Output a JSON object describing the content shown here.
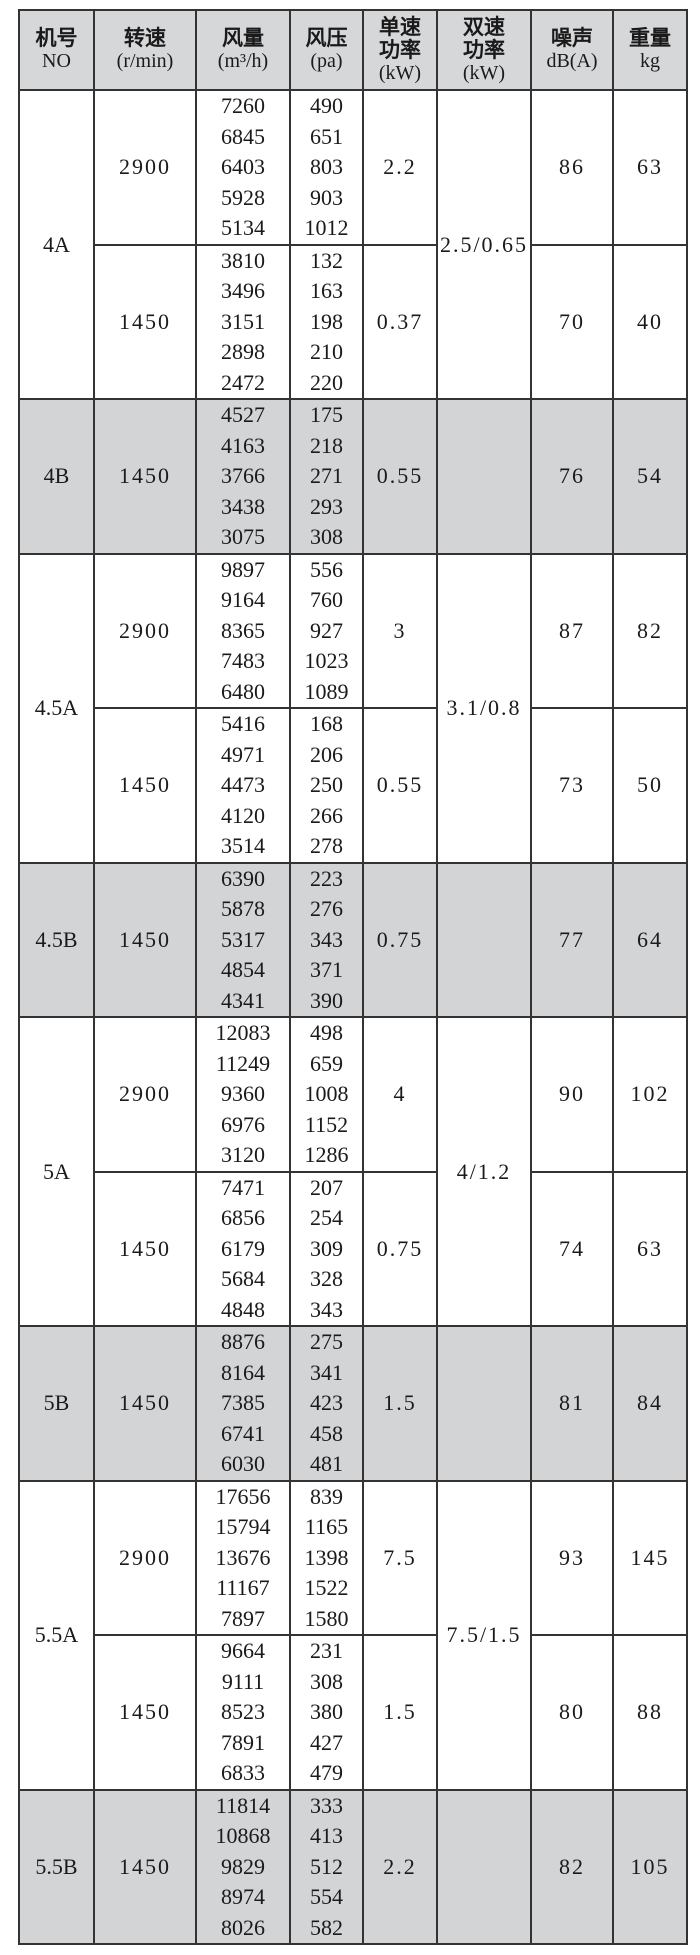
{
  "headers": [
    {
      "title": "机号",
      "sub": "NO"
    },
    {
      "title": "转速",
      "sub": "(r/min)"
    },
    {
      "title": "风量",
      "sub": "(m³/h)"
    },
    {
      "title": "风压",
      "sub": "(pa)"
    },
    {
      "title": "单速功率",
      "sub": "(kW)"
    },
    {
      "title": "双速功率",
      "sub": "(kW)"
    },
    {
      "title": "噪声",
      "sub": "dB(A)"
    },
    {
      "title": "重量",
      "sub": "kg"
    }
  ],
  "colors": {
    "shade": "#d3d4d6",
    "border": "#333333"
  },
  "groups": [
    {
      "model": "4A",
      "shaded": false,
      "dual_power": "2.5/0.65",
      "speeds": [
        {
          "rpm": "2900",
          "airflow": [
            "7260",
            "6845",
            "6403",
            "5928",
            "5134"
          ],
          "pressure": [
            "490",
            "651",
            "803",
            "903",
            "1012"
          ],
          "power": "2.2",
          "noise": "86",
          "weight": "63"
        },
        {
          "rpm": "1450",
          "airflow": [
            "3810",
            "3496",
            "3151",
            "2898",
            "2472"
          ],
          "pressure": [
            "132",
            "163",
            "198",
            "210",
            "220"
          ],
          "power": "0.37",
          "noise": "70",
          "weight": "40"
        }
      ]
    },
    {
      "model": "4B",
      "shaded": true,
      "dual_power": "",
      "speeds": [
        {
          "rpm": "1450",
          "airflow": [
            "4527",
            "4163",
            "3766",
            "3438",
            "3075"
          ],
          "pressure": [
            "175",
            "218",
            "271",
            "293",
            "308"
          ],
          "power": "0.55",
          "noise": "76",
          "weight": "54"
        }
      ]
    },
    {
      "model": "4.5A",
      "shaded": false,
      "dual_power": "3.1/0.8",
      "speeds": [
        {
          "rpm": "2900",
          "airflow": [
            "9897",
            "9164",
            "8365",
            "7483",
            "6480"
          ],
          "pressure": [
            "556",
            "760",
            "927",
            "1023",
            "1089"
          ],
          "power": "3",
          "noise": "87",
          "weight": "82"
        },
        {
          "rpm": "1450",
          "airflow": [
            "5416",
            "4971",
            "4473",
            "4120",
            "3514"
          ],
          "pressure": [
            "168",
            "206",
            "250",
            "266",
            "278"
          ],
          "power": "0.55",
          "noise": "73",
          "weight": "50"
        }
      ]
    },
    {
      "model": "4.5B",
      "shaded": true,
      "dual_power": "",
      "speeds": [
        {
          "rpm": "1450",
          "airflow": [
            "6390",
            "5878",
            "5317",
            "4854",
            "4341"
          ],
          "pressure": [
            "223",
            "276",
            "343",
            "371",
            "390"
          ],
          "power": "0.75",
          "noise": "77",
          "weight": "64"
        }
      ]
    },
    {
      "model": "5A",
      "shaded": false,
      "dual_power": "4/1.2",
      "speeds": [
        {
          "rpm": "2900",
          "airflow": [
            "12083",
            "11249",
            "9360",
            "6976",
            "3120"
          ],
          "pressure": [
            "498",
            "659",
            "1008",
            "1152",
            "1286"
          ],
          "power": "4",
          "noise": "90",
          "weight": "102"
        },
        {
          "rpm": "1450",
          "airflow": [
            "7471",
            "6856",
            "6179",
            "5684",
            "4848"
          ],
          "pressure": [
            "207",
            "254",
            "309",
            "328",
            "343"
          ],
          "power": "0.75",
          "noise": "74",
          "weight": "63"
        }
      ]
    },
    {
      "model": "5B",
      "shaded": true,
      "dual_power": "",
      "speeds": [
        {
          "rpm": "1450",
          "airflow": [
            "8876",
            "8164",
            "7385",
            "6741",
            "6030"
          ],
          "pressure": [
            "275",
            "341",
            "423",
            "458",
            "481"
          ],
          "power": "1.5",
          "noise": "81",
          "weight": "84"
        }
      ]
    },
    {
      "model": "5.5A",
      "shaded": false,
      "dual_power": "7.5/1.5",
      "speeds": [
        {
          "rpm": "2900",
          "airflow": [
            "17656",
            "15794",
            "13676",
            "11167",
            "7897"
          ],
          "pressure": [
            "839",
            "1165",
            "1398",
            "1522",
            "1580"
          ],
          "power": "7.5",
          "noise": "93",
          "weight": "145"
        },
        {
          "rpm": "1450",
          "airflow": [
            "9664",
            "9111",
            "8523",
            "7891",
            "6833"
          ],
          "pressure": [
            "231",
            "308",
            "380",
            "427",
            "479"
          ],
          "power": "1.5",
          "noise": "80",
          "weight": "88"
        }
      ]
    },
    {
      "model": "5.5B",
      "shaded": true,
      "dual_power": "",
      "speeds": [
        {
          "rpm": "1450",
          "airflow": [
            "11814",
            "10868",
            "9829",
            "8974",
            "8026"
          ],
          "pressure": [
            "333",
            "413",
            "512",
            "554",
            "582"
          ],
          "power": "2.2",
          "noise": "82",
          "weight": "105"
        }
      ]
    }
  ]
}
